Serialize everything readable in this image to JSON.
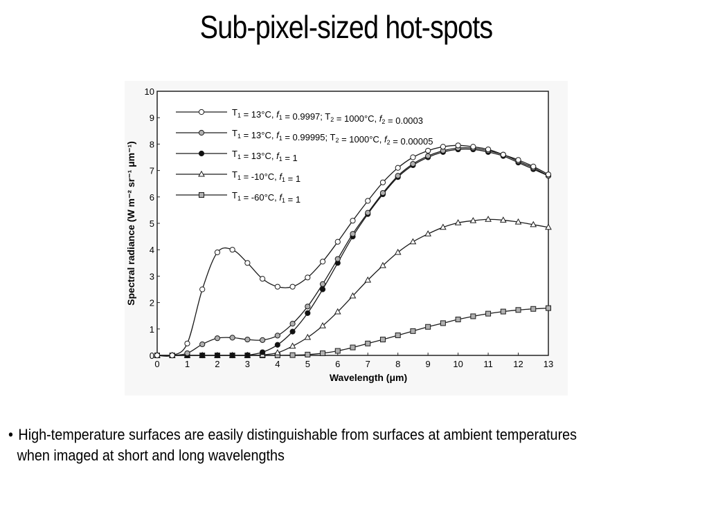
{
  "slide": {
    "title": "Sub-pixel-sized hot-spots",
    "bullet_line1": "High-temperature surfaces are easily distinguishable from surfaces at ambient temperatures",
    "bullet_line2": "when imaged at short and long wavelengths"
  },
  "chart_data": {
    "type": "line",
    "title": "",
    "xlabel": "Wavelength (μm)",
    "ylabel": "Spectral radiance (W m⁻² sr⁻¹ μm⁻¹)",
    "xlim": [
      0,
      13
    ],
    "ylim": [
      0,
      10
    ],
    "xticks": [
      0,
      1,
      2,
      3,
      4,
      5,
      6,
      7,
      8,
      9,
      10,
      11,
      12,
      13
    ],
    "yticks": [
      0,
      1,
      2,
      3,
      4,
      5,
      6,
      7,
      8,
      9,
      10
    ],
    "legend_position": "top-left",
    "grid": false,
    "x": [
      0,
      0.5,
      1,
      1.5,
      2,
      2.5,
      3,
      3.5,
      4,
      4.5,
      5,
      5.5,
      6,
      6.5,
      7,
      7.5,
      8,
      8.5,
      9,
      9.5,
      10,
      10.5,
      11,
      11.5,
      12,
      12.5,
      13
    ],
    "series": [
      {
        "name": "T1 = 13°C, f1 = 0.9997; T2 = 1000°C, f2 = 0.0003",
        "marker": "circle-open",
        "values": [
          0,
          0,
          0.45,
          2.5,
          3.9,
          4.0,
          3.5,
          2.9,
          2.6,
          2.6,
          2.95,
          3.55,
          4.3,
          5.1,
          5.85,
          6.55,
          7.1,
          7.5,
          7.75,
          7.9,
          7.95,
          7.9,
          7.8,
          7.6,
          7.4,
          7.15,
          6.85
        ]
      },
      {
        "name": "T1 = 13°C, f1 = 0.99995; T2 = 1000°C, f2 = 0.00005",
        "marker": "circle-gray",
        "values": [
          0,
          0,
          0.08,
          0.42,
          0.65,
          0.67,
          0.6,
          0.58,
          0.75,
          1.2,
          1.85,
          2.7,
          3.65,
          4.6,
          5.4,
          6.15,
          6.8,
          7.25,
          7.55,
          7.75,
          7.85,
          7.85,
          7.75,
          7.6,
          7.35,
          7.1,
          6.8
        ]
      },
      {
        "name": "T1 = 13°C, f1 = 1",
        "marker": "circle-filled",
        "values": [
          0,
          0,
          0,
          0,
          0,
          0,
          0.01,
          0.12,
          0.4,
          0.9,
          1.6,
          2.5,
          3.5,
          4.5,
          5.35,
          6.1,
          6.75,
          7.2,
          7.5,
          7.7,
          7.8,
          7.8,
          7.7,
          7.55,
          7.3,
          7.05,
          6.8
        ]
      },
      {
        "name": "T1 = -10°C, f1 = 1",
        "marker": "triangle-open",
        "values": [
          0,
          0,
          0,
          0,
          0,
          0,
          0,
          0.02,
          0.1,
          0.35,
          0.68,
          1.12,
          1.65,
          2.25,
          2.85,
          3.4,
          3.9,
          4.3,
          4.6,
          4.85,
          5.02,
          5.1,
          5.15,
          5.12,
          5.05,
          4.95,
          4.85
        ]
      },
      {
        "name": "T1 = -60°C, f1 = 1",
        "marker": "square-gray",
        "values": [
          0,
          0,
          0,
          0,
          0,
          0,
          0,
          0,
          0,
          0.01,
          0.03,
          0.08,
          0.17,
          0.3,
          0.45,
          0.6,
          0.76,
          0.92,
          1.08,
          1.22,
          1.36,
          1.48,
          1.58,
          1.66,
          1.72,
          1.76,
          1.79
        ]
      }
    ],
    "legend_labels": [
      {
        "a": "T",
        "a_sub": "1",
        "b": " =  13°C,  ",
        "c": "f",
        "c_sub": "1",
        "d": " = 0.9997; T",
        "d_sub": "2",
        "e": " = 1000°C,  ",
        "f": "f",
        "f_sub": "2",
        "g": " = 0.0003"
      },
      {
        "a": "T",
        "a_sub": "1",
        "b": " =  13°C,  ",
        "c": "f",
        "c_sub": "1",
        "d": " = 0.99995; T",
        "d_sub": "2",
        "e": " = 1000°C,  ",
        "f": "f",
        "f_sub": "2",
        "g": " = 0.00005"
      },
      {
        "a": "T",
        "a_sub": "1",
        "b": " =  13°C,  ",
        "c": "f",
        "c_sub": "1",
        "d": " = 1",
        "d_sub": "",
        "e": "",
        "f": "",
        "f_sub": "",
        "g": ""
      },
      {
        "a": "T",
        "a_sub": "1",
        "b": " = -10°C,  ",
        "c": "f",
        "c_sub": "1",
        "d": " = 1",
        "d_sub": "",
        "e": "",
        "f": "",
        "f_sub": "",
        "g": ""
      },
      {
        "a": "T",
        "a_sub": "1",
        "b": " = -60°C,  ",
        "c": "f",
        "c_sub": "1",
        "d": " = 1",
        "d_sub": "",
        "e": "",
        "f": "",
        "f_sub": "",
        "g": ""
      }
    ],
    "colors": {
      "line": "#1a1a1a",
      "marker_gray": "#b0b0b0",
      "marker_white": "#ffffff",
      "marker_black": "#111111",
      "chart_bg": "#f7f7f7"
    }
  }
}
